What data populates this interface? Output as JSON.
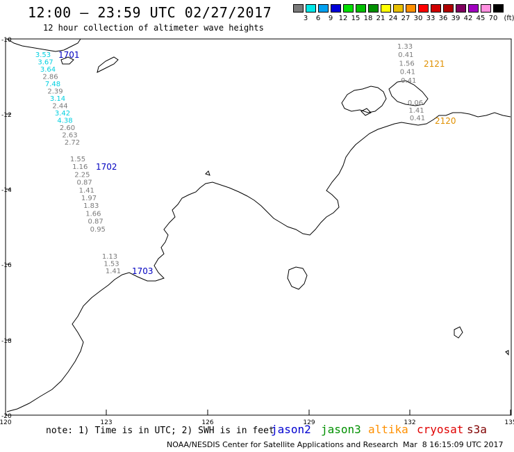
{
  "header": {
    "title": "12:00 – 23:59 UTC 02/27/2017",
    "subtitle": "12 hour collection of altimeter wave heights"
  },
  "legend": {
    "unit": "(ft)",
    "items": [
      {
        "label": "3",
        "color": "#7a7a7a"
      },
      {
        "label": "6",
        "color": "#00e8e8"
      },
      {
        "label": "9",
        "color": "#00a0f0"
      },
      {
        "label": "12",
        "color": "#0000d8"
      },
      {
        "label": "15",
        "color": "#00e000"
      },
      {
        "label": "18",
        "color": "#00c000"
      },
      {
        "label": "21",
        "color": "#009000"
      },
      {
        "label": "24",
        "color": "#ffff00"
      },
      {
        "label": "27",
        "color": "#e8c000"
      },
      {
        "label": "30",
        "color": "#ff9000"
      },
      {
        "label": "33",
        "color": "#ff0000"
      },
      {
        "label": "36",
        "color": "#d00000"
      },
      {
        "label": "39",
        "color": "#b00000"
      },
      {
        "label": "42",
        "color": "#800060"
      },
      {
        "label": "45",
        "color": "#a000c0"
      },
      {
        "label": "70",
        "color": "#ff90e0"
      },
      {
        "label": "",
        "color": "#000000"
      }
    ]
  },
  "axes": {
    "x_ticks": [
      "120",
      "123",
      "126",
      "129",
      "132",
      "135"
    ],
    "y_ticks": [
      "-10",
      "-12",
      "-14",
      "-16",
      "-18",
      "-20"
    ]
  },
  "tracks": [
    {
      "id": "1701",
      "color": "#0000c0",
      "points": [
        {
          "v": "3.53",
          "color": "#00d0e0"
        },
        {
          "v": "3.67",
          "color": "#00d0e0"
        },
        {
          "v": "3.64",
          "color": "#00d0e0"
        },
        {
          "v": "2.86",
          "color": "#7a7a7a"
        },
        {
          "v": "7.48",
          "color": "#00d0e0"
        },
        {
          "v": "2.39",
          "color": "#7a7a7a"
        },
        {
          "v": "3.14",
          "color": "#00d0e0"
        },
        {
          "v": "2.44",
          "color": "#7a7a7a"
        },
        {
          "v": "3.42",
          "color": "#00d0e0"
        },
        {
          "v": "4.38",
          "color": "#00d0e0"
        },
        {
          "v": "2.60",
          "color": "#7a7a7a"
        },
        {
          "v": "2.63",
          "color": "#7a7a7a"
        },
        {
          "v": "2.72",
          "color": "#7a7a7a"
        }
      ]
    },
    {
      "id": "1702",
      "color": "#0000c0",
      "points": [
        {
          "v": "1.55",
          "color": "#7a7a7a"
        },
        {
          "v": "1.16",
          "color": "#7a7a7a"
        },
        {
          "v": "2.25",
          "color": "#7a7a7a"
        },
        {
          "v": "0.87",
          "color": "#7a7a7a"
        },
        {
          "v": "1.41",
          "color": "#7a7a7a"
        },
        {
          "v": "1.97",
          "color": "#7a7a7a"
        },
        {
          "v": "1.83",
          "color": "#7a7a7a"
        },
        {
          "v": "1.66",
          "color": "#7a7a7a"
        },
        {
          "v": "0.87",
          "color": "#7a7a7a"
        },
        {
          "v": "0.95",
          "color": "#7a7a7a"
        }
      ]
    },
    {
      "id": "1703",
      "color": "#0000c0",
      "points": [
        {
          "v": "1.13",
          "color": "#7a7a7a"
        },
        {
          "v": "1.53",
          "color": "#7a7a7a"
        },
        {
          "v": "1.41",
          "color": "#7a7a7a"
        }
      ]
    },
    {
      "id": "2121",
      "color": "#e09000",
      "points": [
        {
          "v": "1.33",
          "color": "#7a7a7a"
        },
        {
          "v": "0.41",
          "color": "#7a7a7a"
        },
        {
          "v": "1.56",
          "color": "#7a7a7a"
        },
        {
          "v": "0.41",
          "color": "#7a7a7a"
        },
        {
          "v": "0.41",
          "color": "#7a7a7a"
        }
      ]
    },
    {
      "id": "2120",
      "color": "#e09000",
      "points": [
        {
          "v": "0.06",
          "color": "#7a7a7a"
        },
        {
          "v": "1.41",
          "color": "#7a7a7a"
        },
        {
          "v": "0.41",
          "color": "#7a7a7a"
        }
      ]
    }
  ],
  "footer": {
    "note": "note: 1) Time is in UTC; 2) SWH is in feet",
    "satellites": [
      {
        "name": "jason2",
        "color": "#0000d0"
      },
      {
        "name": "jason3",
        "color": "#009000"
      },
      {
        "name": "altika",
        "color": "#ff9000"
      },
      {
        "name": "cryosat",
        "color": "#e00000"
      },
      {
        "name": "s3a",
        "color": "#800000"
      }
    ],
    "credit": "NOAA/NESDIS Center for Satellite Applications and Research",
    "timestamp": "Mar  8 16:15:09 UTC 2017"
  }
}
